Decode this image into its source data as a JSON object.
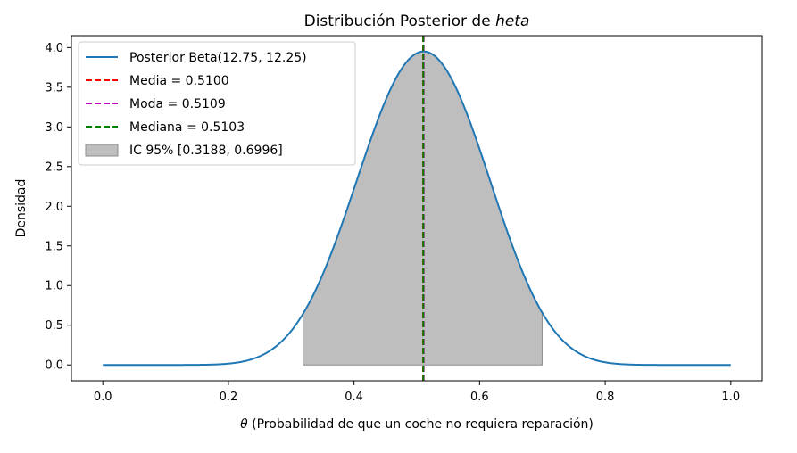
{
  "chart_data": {
    "type": "line",
    "title_prefix": "Distribución Posterior de ",
    "title_italic": "heta",
    "xlabel_symbol": "θ",
    "xlabel_rest": " (Probabilidad de que un coche no requiera reparación)",
    "ylabel": "Densidad",
    "xlim": [
      -0.05,
      1.05
    ],
    "ylim": [
      -0.2,
      4.15
    ],
    "x_ticks": [
      0.0,
      0.2,
      0.4,
      0.6,
      0.8,
      1.0
    ],
    "x_tick_labels": [
      "0.0",
      "0.2",
      "0.4",
      "0.6",
      "0.8",
      "1.0"
    ],
    "y_ticks": [
      0.0,
      0.5,
      1.0,
      1.5,
      2.0,
      2.5,
      3.0,
      3.5,
      4.0
    ],
    "y_tick_labels": [
      "0.0",
      "0.5",
      "1.0",
      "1.5",
      "2.0",
      "2.5",
      "3.0",
      "3.5",
      "4.0"
    ],
    "grid": false,
    "legend_position": "top-left",
    "distribution": {
      "family": "beta",
      "alpha": 12.75,
      "beta": 12.25,
      "x_range": [
        0,
        1
      ]
    },
    "series": [
      {
        "name": "Posterior Beta(12.75, 12.25)",
        "kind": "curve",
        "color": "#1f77b4"
      },
      {
        "name": "Media = 0.5100",
        "kind": "vline",
        "x": 0.51,
        "color": "#ff0000"
      },
      {
        "name": "Moda = 0.5109",
        "kind": "vline",
        "x": 0.5109,
        "color": "#bf00bf"
      },
      {
        "name": "Mediana = 0.5103",
        "kind": "vline",
        "x": 0.5103,
        "color": "#008000"
      },
      {
        "name": "IC 95% [0.3188, 0.6996]",
        "kind": "fill",
        "x_from": 0.3188,
        "x_to": 0.6996,
        "color": "#bebebe"
      }
    ]
  }
}
